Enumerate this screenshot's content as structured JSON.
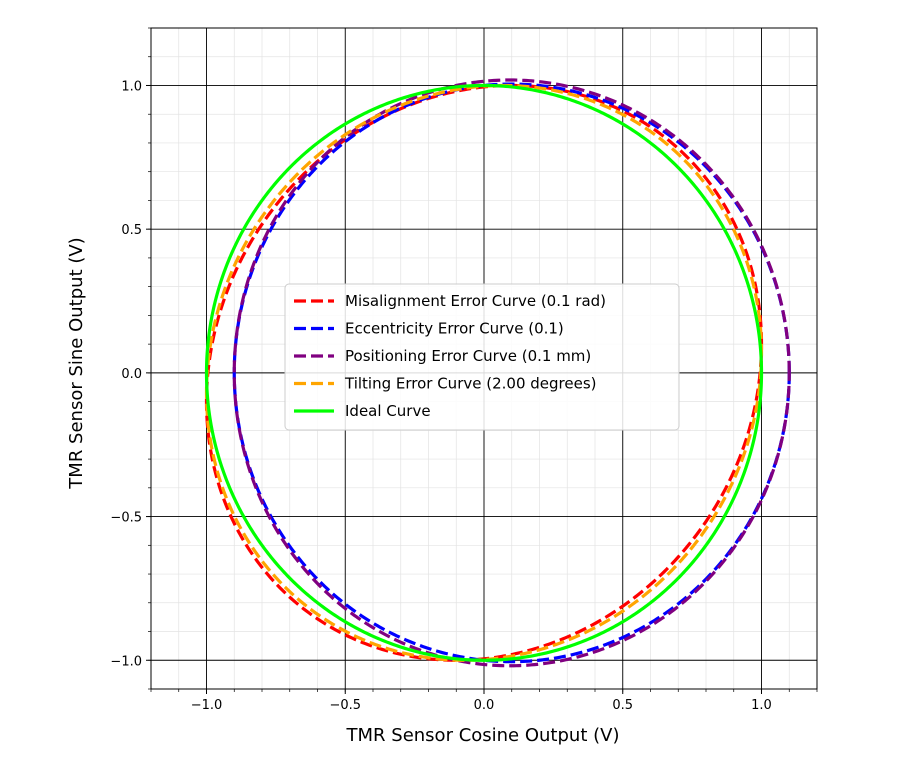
{
  "chart_data": {
    "type": "line",
    "title": "",
    "xlabel": "TMR Sensor Cosine Output (V)",
    "ylabel": "TMR Sensor Sine Output (V)",
    "xlim": [
      -1.2,
      1.2
    ],
    "ylim": [
      -1.1,
      1.2
    ],
    "grid": true,
    "minor_grid": true,
    "x_ticks": [
      -1.0,
      -0.5,
      0.0,
      0.5,
      1.0
    ],
    "y_ticks": [
      -1.0,
      -0.5,
      0.0,
      0.5,
      1.0
    ],
    "x_tick_labels": [
      "−1.0",
      "−0.5",
      "0.0",
      "0.5",
      "1.0"
    ],
    "y_tick_labels": [
      "−1.0",
      "−0.5",
      "0.0",
      "0.5",
      "1.0"
    ],
    "legend_position": "center",
    "series": [
      {
        "name": "Misalignment Error Curve (0.1 rad)",
        "color": "#ff0000",
        "style": "dashed",
        "model": "misalignment",
        "param": 0.1
      },
      {
        "name": "Eccentricity Error Curve (0.1)",
        "color": "#0000ff",
        "style": "dashed",
        "model": "eccentricity",
        "param": 0.1
      },
      {
        "name": "Positioning Error Curve (0.1 mm)",
        "color": "#800080",
        "style": "dashed",
        "model": "positioning",
        "param": 0.1
      },
      {
        "name": "Tilting Error Curve (2.00 degrees)",
        "color": "#ffa500",
        "style": "dashed",
        "model": "tilting",
        "param": 2.0
      },
      {
        "name": "Ideal Curve",
        "color": "#00ff00",
        "style": "solid",
        "model": "ideal",
        "param": 0
      }
    ]
  }
}
